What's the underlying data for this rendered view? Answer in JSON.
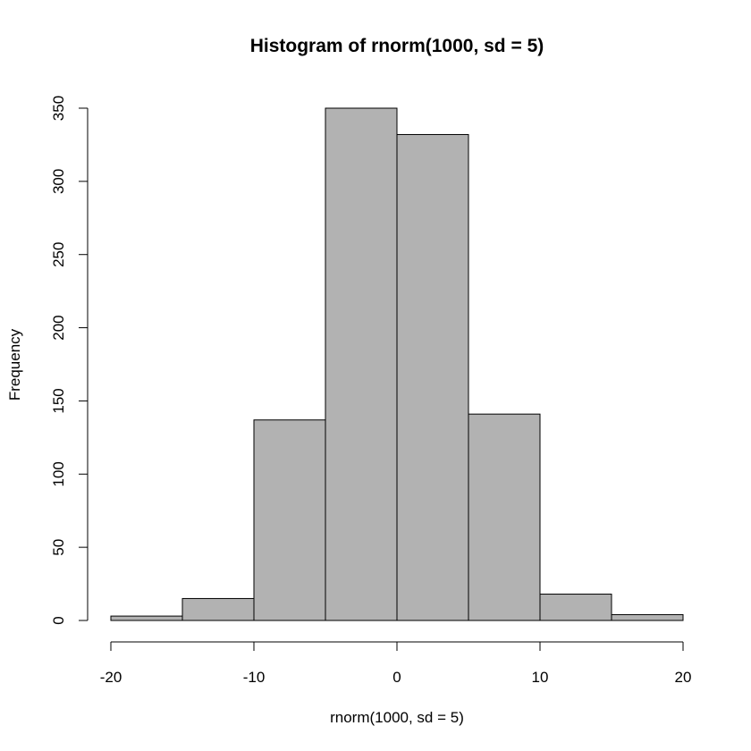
{
  "chart_data": {
    "type": "bar",
    "title": "Histogram of rnorm(1000, sd = 5)",
    "xlabel": "rnorm(1000, sd = 5)",
    "ylabel": "Frequency",
    "bin_edges": [
      -20,
      -15,
      -10,
      -5,
      0,
      5,
      10,
      15,
      20
    ],
    "values": [
      3,
      15,
      137,
      350,
      332,
      141,
      18,
      4
    ],
    "xlim": [
      -20,
      20
    ],
    "ylim": [
      0,
      350
    ],
    "x_ticks": [
      -20,
      -10,
      0,
      10,
      20
    ],
    "y_ticks": [
      0,
      50,
      100,
      150,
      200,
      250,
      300,
      350
    ],
    "bar_color": "#b2b2b2",
    "grid": false
  }
}
